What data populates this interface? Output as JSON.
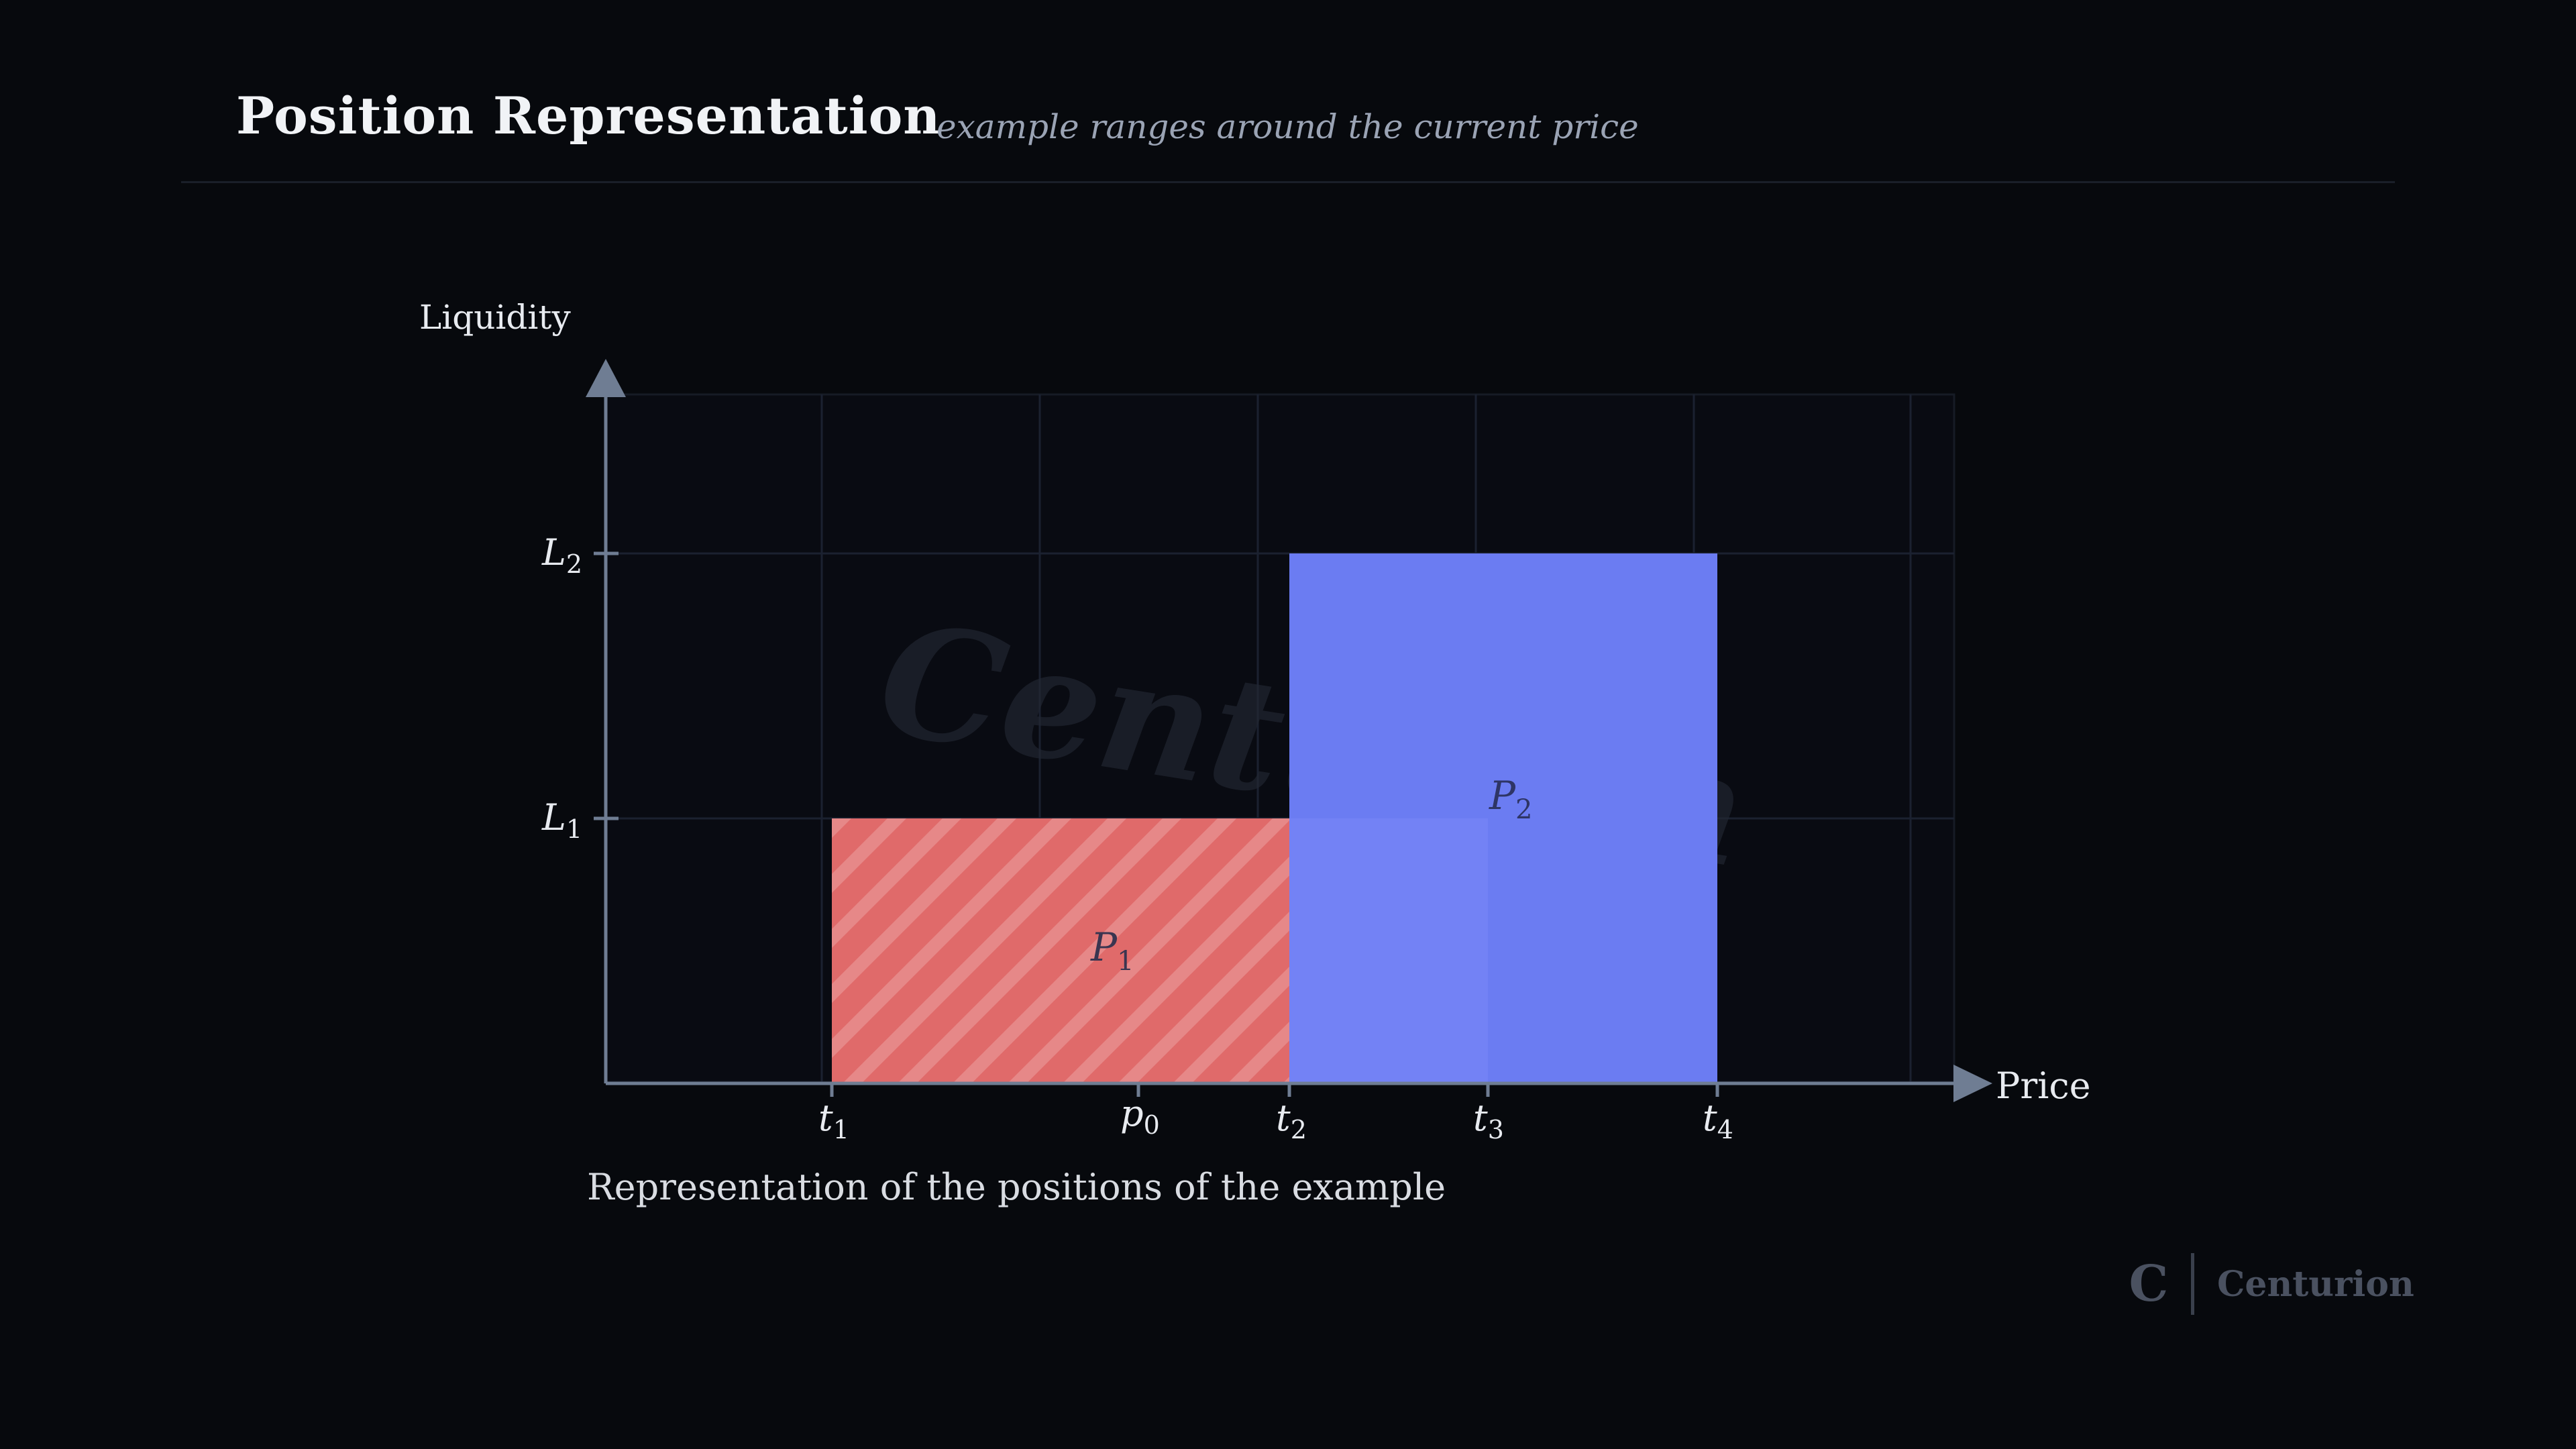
{
  "header": {
    "title": "Position Representation",
    "subtitle": "example ranges around the current price"
  },
  "diagram": {
    "y_axis_label": "Liquidity",
    "x_axis_label": "Price",
    "y_ticks": [
      {
        "base": "L",
        "sub": "2"
      },
      {
        "base": "L",
        "sub": "1"
      }
    ],
    "x_ticks": [
      {
        "base": "t",
        "sub": "1"
      },
      {
        "base": "p",
        "sub": "0"
      },
      {
        "base": "t",
        "sub": "2"
      },
      {
        "base": "t",
        "sub": "3"
      },
      {
        "base": "t",
        "sub": "4"
      }
    ],
    "positions": [
      {
        "base": "P",
        "sub": "1",
        "from": "t1",
        "to": "t2",
        "liquidity": "L1",
        "color": "#e06a6a",
        "pattern": "diagonal-hatch"
      },
      {
        "base": "P",
        "sub": "2",
        "from": "t2",
        "to": "t4",
        "liquidity": "L2",
        "color": "#6b7cf2",
        "pattern": "solid"
      }
    ],
    "watermark": "Centurion",
    "colors": {
      "axis": "#6f7d93",
      "grid": "#1b2130",
      "plot_bg": "#090b12"
    }
  },
  "caption": "Representation of the positions of the example",
  "brand": {
    "logo": "C",
    "name": "Centurion"
  }
}
